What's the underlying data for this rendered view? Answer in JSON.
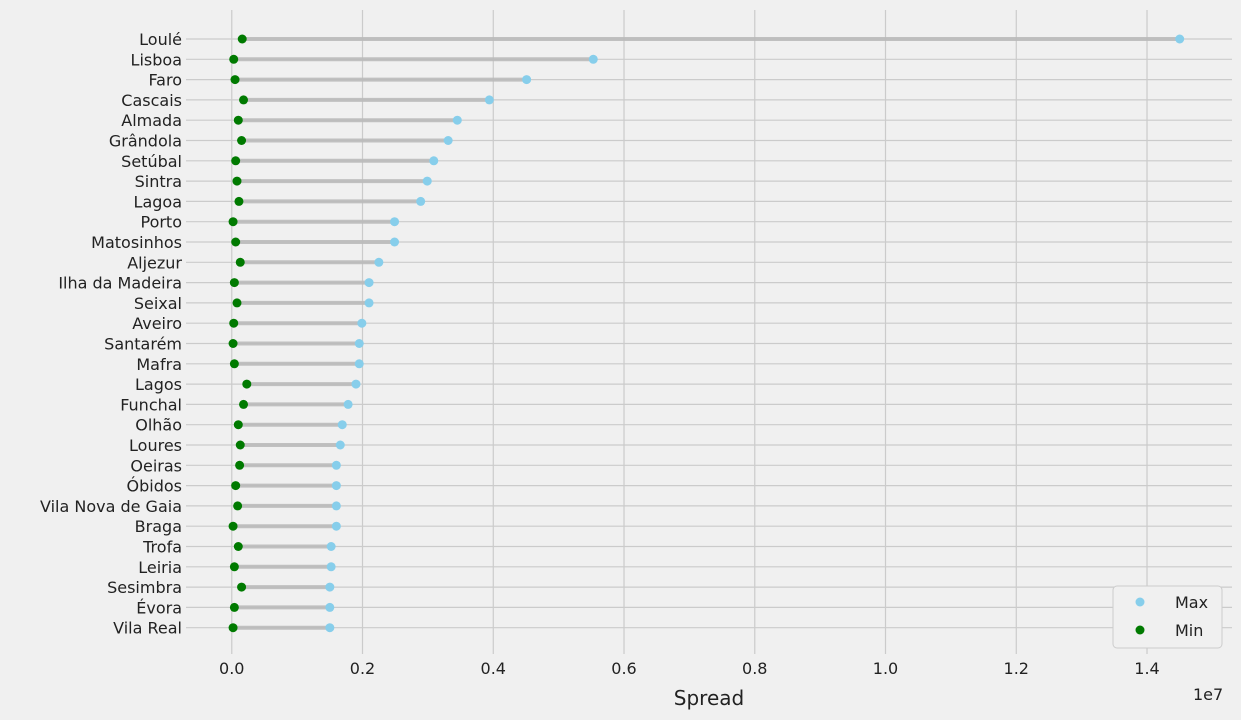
{
  "chart_data": {
    "type": "dumbbell",
    "title": "",
    "xlabel": "Spread",
    "ylabel": "",
    "x_scale_label": "1e7",
    "xlim": [
      -0.07,
      1.53
    ],
    "x_ticks": [
      "0.0",
      "0.2",
      "0.4",
      "0.6",
      "0.8",
      "1.0",
      "1.2",
      "1.4"
    ],
    "x_tick_values": [
      0.0,
      0.2,
      0.4,
      0.6,
      0.8,
      1.0,
      1.2,
      1.4
    ],
    "grid": true,
    "legend_position": "bottom-right",
    "categories": [
      "Loulé",
      "Lisboa",
      "Faro",
      "Cascais",
      "Almada",
      "Grândola",
      "Setúbal",
      "Sintra",
      "Lagoa",
      "Porto",
      "Matosinhos",
      "Aljezur",
      "Ilha da Madeira",
      "Seixal",
      "Aveiro",
      "Santarém",
      "Mafra",
      "Lagos",
      "Funchal",
      "Olhão",
      "Loures",
      "Oeiras",
      "Óbidos",
      "Vila Nova de Gaia",
      "Braga",
      "Trofa",
      "Leiria",
      "Sesimbra",
      "Évora",
      "Vila Real"
    ],
    "series": [
      {
        "name": "Max",
        "color": "#87ceeb",
        "values": [
          1.45,
          0.553,
          0.451,
          0.394,
          0.345,
          0.331,
          0.309,
          0.299,
          0.289,
          0.249,
          0.249,
          0.225,
          0.21,
          0.21,
          0.199,
          0.195,
          0.195,
          0.19,
          0.178,
          0.169,
          0.166,
          0.16,
          0.16,
          0.16,
          0.16,
          0.152,
          0.152,
          0.15,
          0.15,
          0.15
        ]
      },
      {
        "name": "Min",
        "color": "#007a00",
        "values": [
          0.016,
          0.003,
          0.005,
          0.018,
          0.01,
          0.015,
          0.006,
          0.008,
          0.011,
          0.002,
          0.006,
          0.013,
          0.004,
          0.008,
          0.003,
          0.002,
          0.004,
          0.023,
          0.018,
          0.01,
          0.013,
          0.012,
          0.006,
          0.009,
          0.002,
          0.01,
          0.004,
          0.015,
          0.004,
          0.002
        ]
      }
    ],
    "connector_color": "#bbbbbb"
  }
}
